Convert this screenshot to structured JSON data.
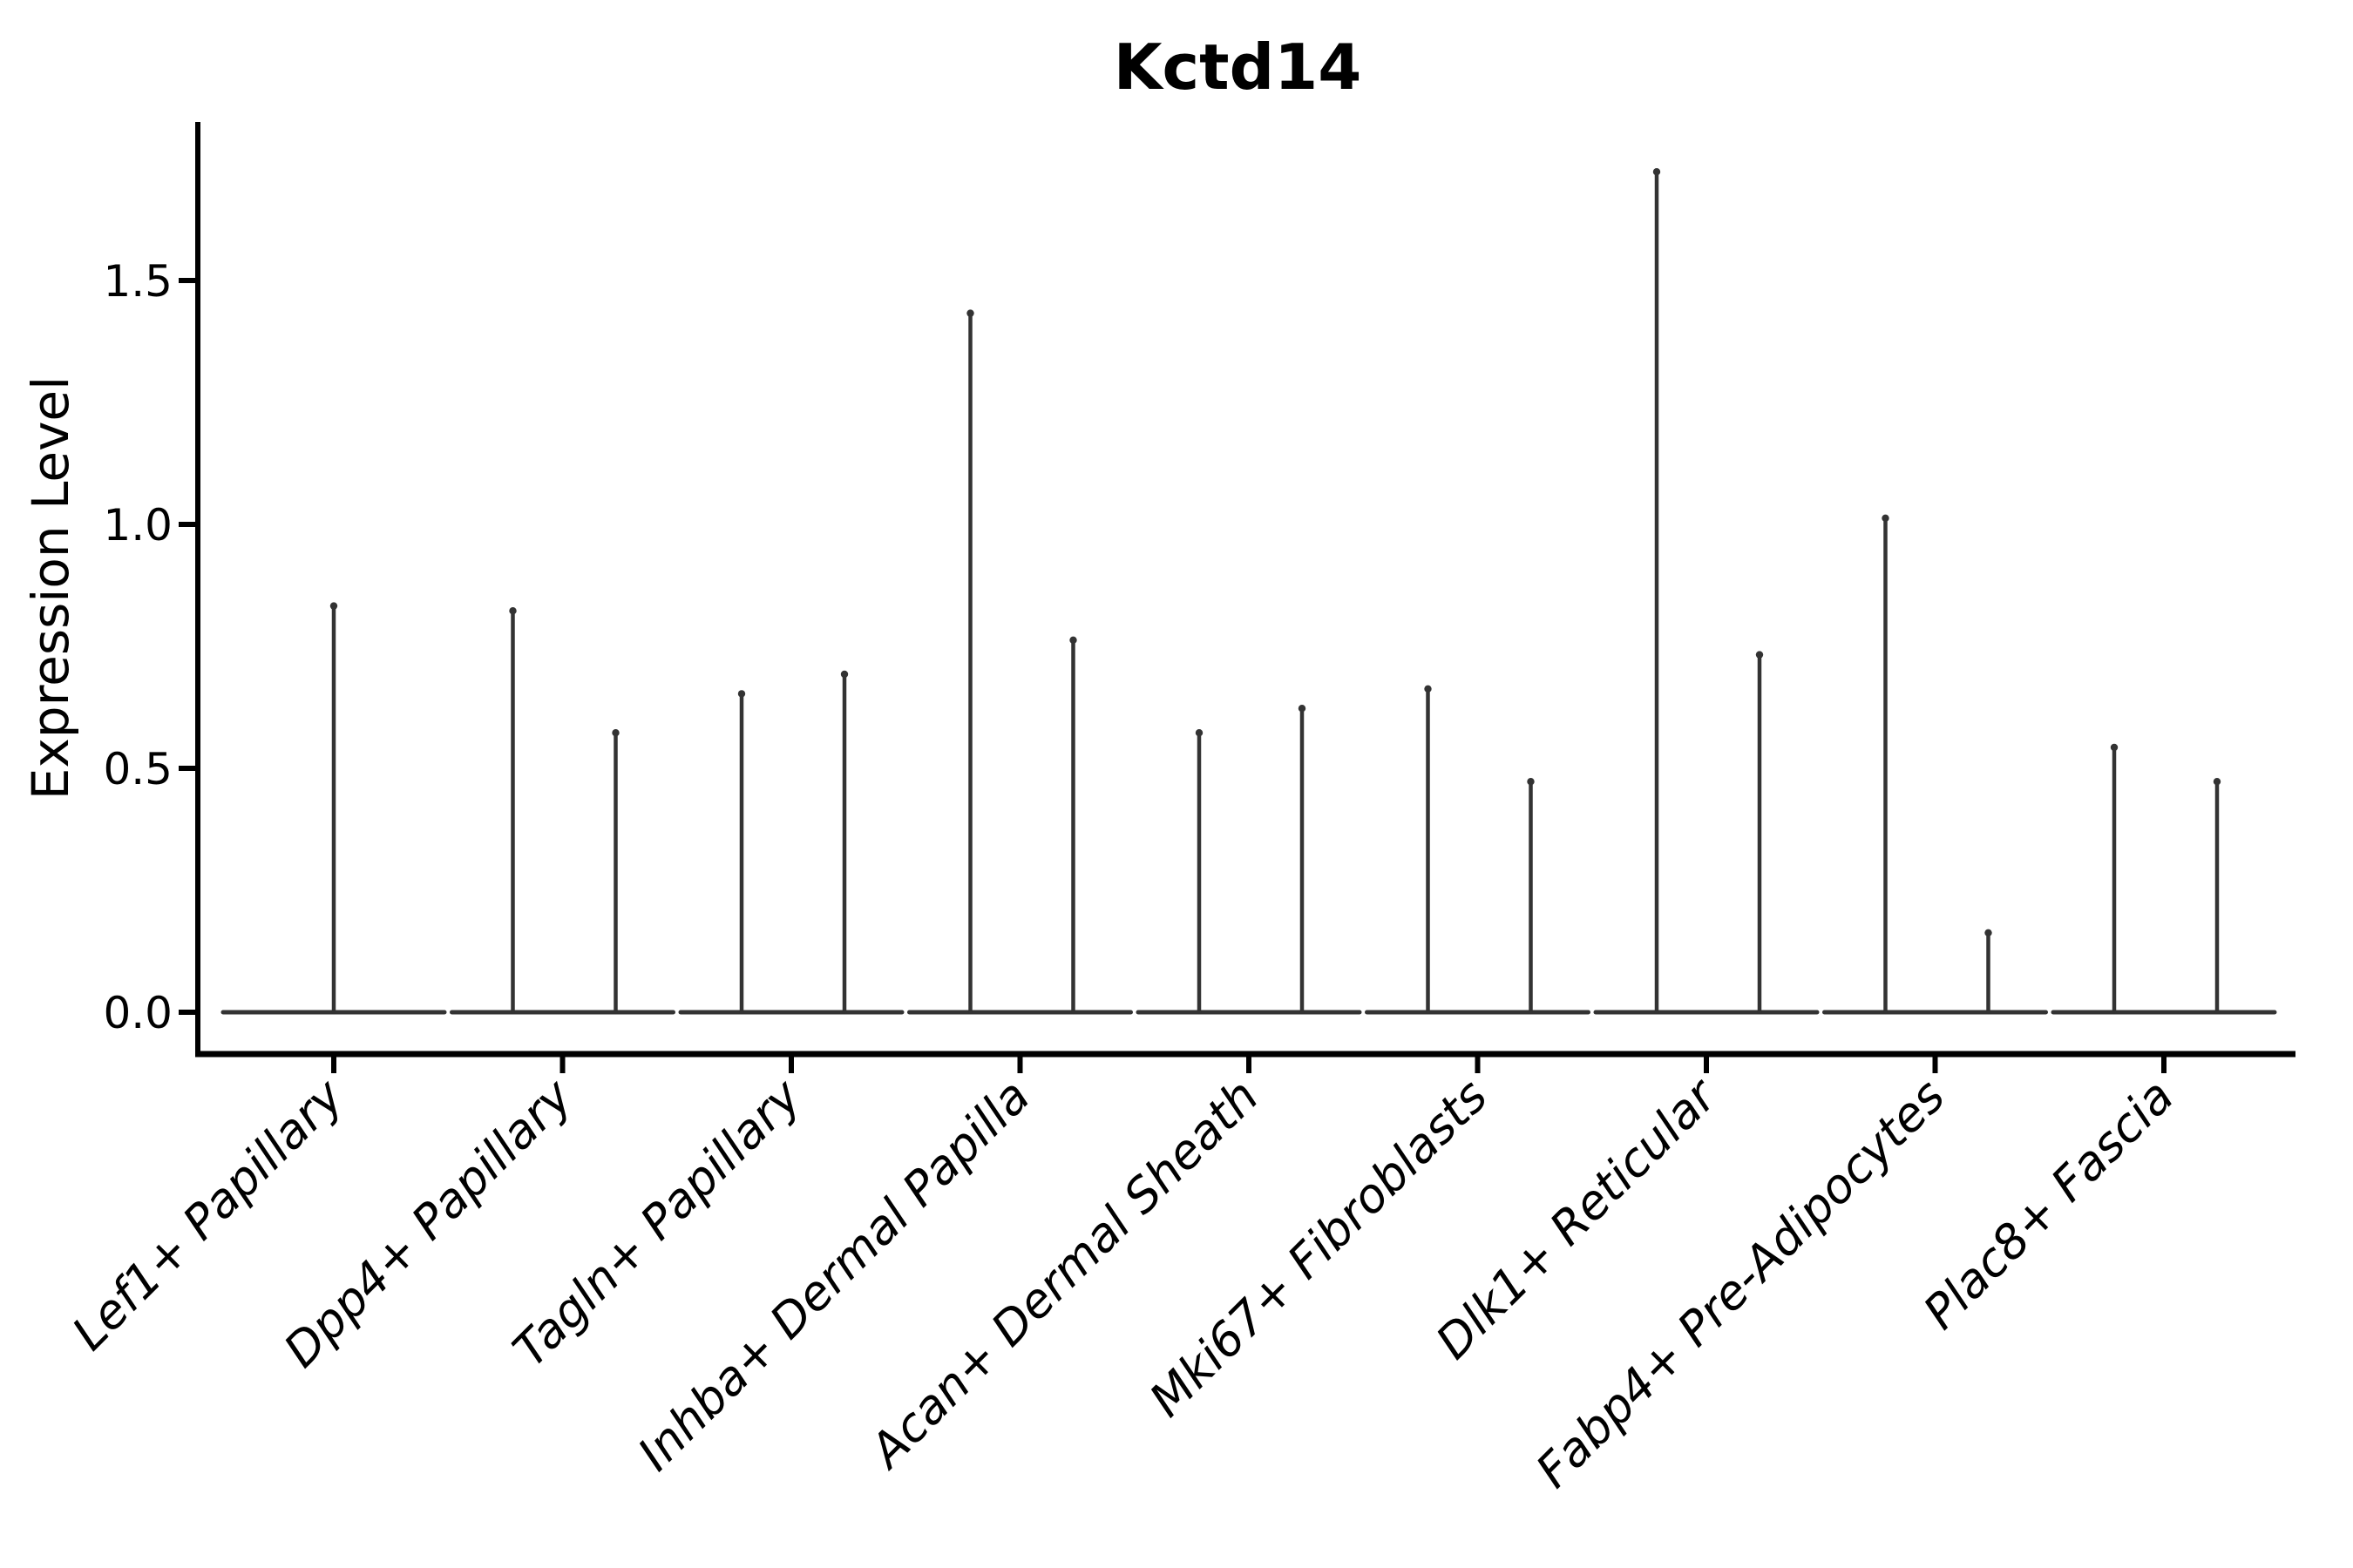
{
  "chart_data": {
    "type": "violin",
    "title": "Kctd14",
    "ylabel": "Expression Level",
    "xlabel": "",
    "yticks": [
      0.0,
      0.5,
      1.0,
      1.5
    ],
    "ytick_labels": [
      "0.0",
      "0.5",
      "1.0",
      "1.5"
    ],
    "ylim": [
      -0.09,
      1.83
    ],
    "grid": false,
    "legend": "none",
    "categories": [
      "Lef1+ Papillary",
      "Dpp4+ Papillary",
      "Tagln+ Papillary",
      "Inhba+ Dermal Papilla",
      "Acan+ Dermal Sheath",
      "Mki67+ Fibroblasts",
      "Dlk1+ Reticular",
      "Fabp4+ Pre-Adipocytes",
      "Plac8+ Fascia"
    ],
    "violins": [
      {
        "category": "Lef1+ Papillary",
        "peaks": [
          0.84
        ]
      },
      {
        "category": "Dpp4+ Papillary",
        "peaks": [
          0.83,
          0.58
        ]
      },
      {
        "category": "Tagln+ Papillary",
        "peaks": [
          0.66,
          0.7
        ]
      },
      {
        "category": "Inhba+ Dermal Papilla",
        "peaks": [
          1.44,
          0.77
        ]
      },
      {
        "category": "Acan+ Dermal Sheath",
        "peaks": [
          0.58,
          0.63
        ]
      },
      {
        "category": "Mki67+ Fibroblasts",
        "peaks": [
          0.67,
          0.48
        ]
      },
      {
        "category": "Dlk1+ Reticular",
        "peaks": [
          1.73,
          0.74
        ]
      },
      {
        "category": "Fabp4+ Pre-Adipocytes",
        "peaks": [
          1.02,
          0.17
        ]
      },
      {
        "category": "Plac8+ Fascia",
        "peaks": [
          0.55,
          0.48
        ]
      }
    ],
    "description": "Needle-style violin plot: expression mass concentrated at 0 (flat base line per category) with thin vertical spikes reaching the maximum expression values listed in peaks.",
    "colors": {
      "needle": "#333333",
      "baseline": "#333333",
      "axis": "#000000",
      "text": "#000000",
      "background": "#ffffff"
    }
  }
}
